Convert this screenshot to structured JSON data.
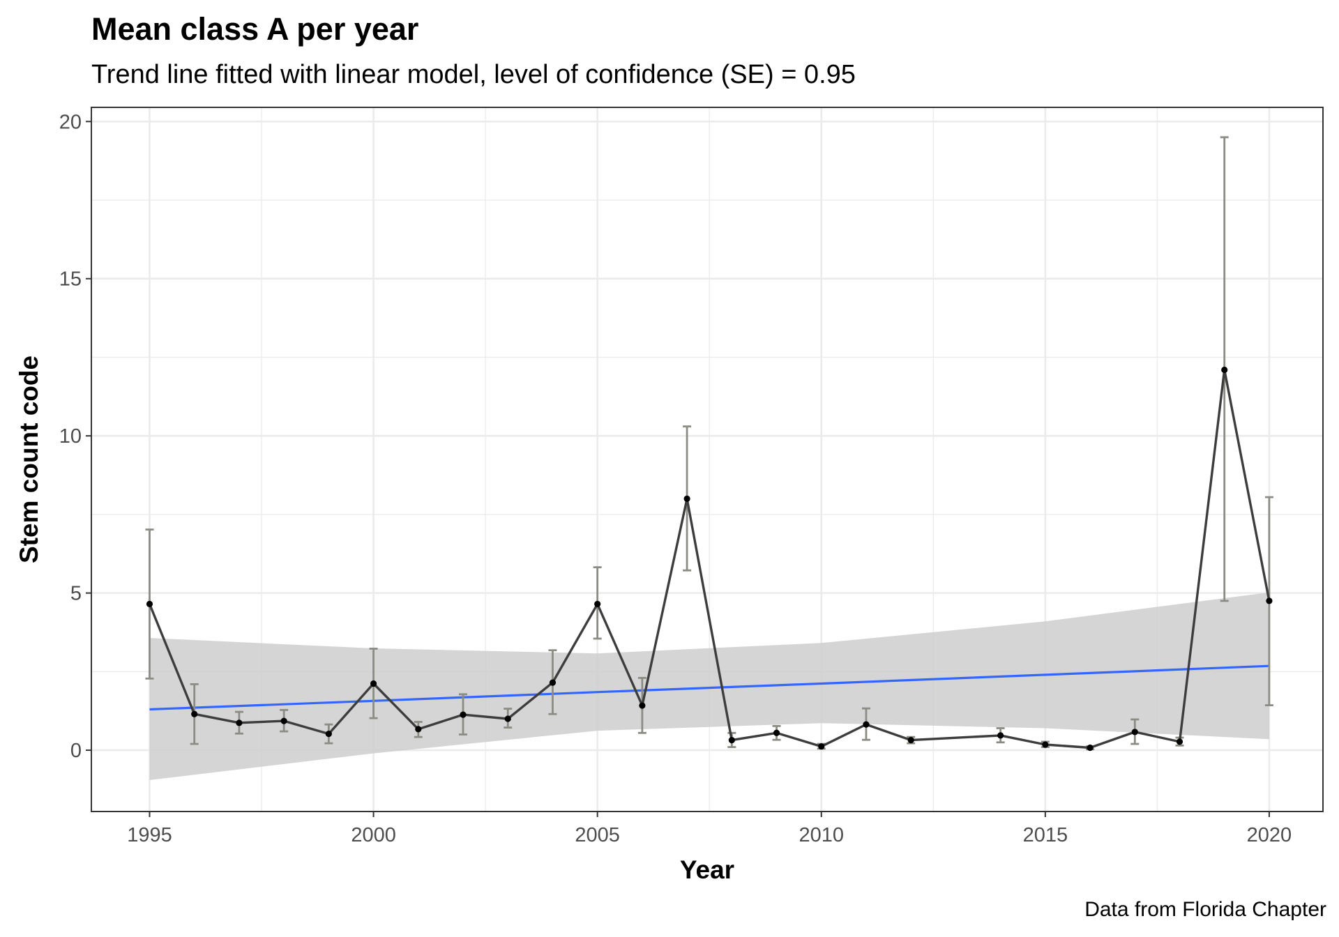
{
  "chart_data": {
    "type": "line",
    "title": "Mean class A per year",
    "subtitle": "Trend line fitted with linear model, level of confidence (SE) = 0.95",
    "caption": "Data from Florida Chapter",
    "xlabel": "Year",
    "ylabel": "Stem count code",
    "xlim": [
      1993.7,
      2021.2
    ],
    "ylim": [
      -1.95,
      20.45
    ],
    "x_ticks": [
      1995,
      2000,
      2005,
      2010,
      2015,
      2020
    ],
    "y_ticks": [
      0,
      5,
      10,
      15,
      20
    ],
    "grid": true,
    "series": [
      {
        "x": [
          1995,
          1996,
          1997,
          1998,
          1999,
          2000,
          2001,
          2002,
          2003,
          2004,
          2005,
          2006,
          2007,
          2008,
          2009,
          2010,
          2011,
          2012,
          2014,
          2015,
          2016,
          2017,
          2018,
          2019,
          2020
        ],
        "y": [
          4.65,
          1.15,
          0.87,
          0.93,
          0.52,
          2.12,
          0.67,
          1.13,
          1.0,
          2.15,
          4.65,
          1.42,
          8.0,
          0.32,
          0.55,
          0.12,
          0.82,
          0.32,
          0.47,
          0.18,
          0.08,
          0.58,
          0.27,
          12.1,
          4.75
        ],
        "err_low": [
          2.28,
          0.2,
          0.53,
          0.6,
          0.22,
          1.02,
          0.42,
          0.5,
          0.72,
          1.15,
          3.55,
          0.55,
          5.72,
          0.1,
          0.33,
          0.05,
          0.33,
          0.22,
          0.25,
          0.1,
          0.03,
          0.2,
          0.15,
          4.75,
          1.43
        ],
        "err_high": [
          7.02,
          2.1,
          1.22,
          1.28,
          0.82,
          3.23,
          0.9,
          1.78,
          1.32,
          3.18,
          5.82,
          2.3,
          10.3,
          0.55,
          0.77,
          0.2,
          1.33,
          0.42,
          0.7,
          0.27,
          0.12,
          0.98,
          0.4,
          19.5,
          8.05
        ]
      }
    ],
    "trend": {
      "method": "linear model",
      "x": [
        1995,
        2000,
        2005,
        2010,
        2015,
        2020
      ],
      "fit": [
        1.3,
        1.57,
        1.85,
        2.12,
        2.4,
        2.68
      ],
      "ci_low": [
        -0.95,
        -0.1,
        0.62,
        0.86,
        0.7,
        0.35
      ],
      "ci_high": [
        3.57,
        3.24,
        3.08,
        3.41,
        4.1,
        5.02
      ]
    },
    "colors": {
      "line": "#3d3d3d",
      "points": "#000000",
      "error_bars": "#8c8c85",
      "trend": "#3366ff",
      "ribbon": "#cccccc",
      "grid": "#ebebeb",
      "panel_border": "#333333"
    }
  }
}
